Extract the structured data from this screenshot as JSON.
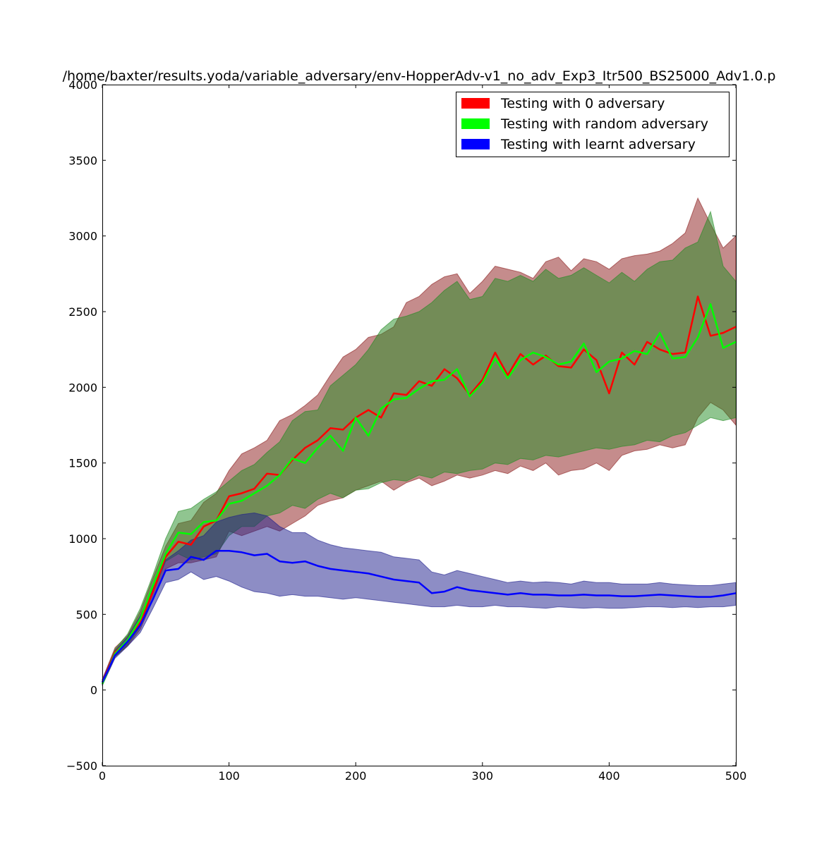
{
  "chart_data": {
    "type": "line",
    "title": "/home/baxter/results.yoda/variable_adversary/env-HopperAdv-v1_no_adv_Exp3_Itr500_BS25000_Adv1.0.p",
    "xlabel": "",
    "ylabel": "",
    "xlim": [
      0,
      500
    ],
    "ylim": [
      -500,
      4000
    ],
    "xticks": [
      0,
      100,
      200,
      300,
      400,
      500
    ],
    "yticks": [
      -500,
      0,
      500,
      1000,
      1500,
      2000,
      2500,
      3000,
      3500,
      4000
    ],
    "grid": false,
    "legend_position": "top-right",
    "series": [
      {
        "name": "Testing with 0 adversary",
        "color": "#ff0000",
        "band_color": "#8b1a1a",
        "x": [
          0,
          10,
          20,
          30,
          40,
          50,
          60,
          70,
          80,
          90,
          100,
          110,
          120,
          130,
          140,
          150,
          160,
          170,
          180,
          190,
          200,
          210,
          220,
          230,
          240,
          250,
          260,
          270,
          280,
          290,
          300,
          310,
          320,
          330,
          340,
          350,
          360,
          370,
          380,
          390,
          400,
          410,
          420,
          430,
          440,
          450,
          460,
          470,
          480,
          490,
          500
        ],
        "mean": [
          50,
          250,
          320,
          450,
          650,
          880,
          980,
          960,
          1080,
          1120,
          1280,
          1300,
          1330,
          1430,
          1420,
          1520,
          1600,
          1650,
          1730,
          1720,
          1800,
          1850,
          1800,
          1960,
          1950,
          2040,
          2010,
          2120,
          2060,
          1950,
          2050,
          2230,
          2080,
          2220,
          2150,
          2210,
          2140,
          2130,
          2250,
          2180,
          1960,
          2230,
          2150,
          2300,
          2250,
          2220,
          2230,
          2600,
          2340,
          2360,
          2400
        ],
        "lower": [
          30,
          220,
          290,
          400,
          600,
          800,
          840,
          840,
          860,
          880,
          1050,
          1020,
          1050,
          1080,
          1050,
          1100,
          1150,
          1220,
          1250,
          1270,
          1320,
          1350,
          1380,
          1320,
          1370,
          1400,
          1350,
          1380,
          1420,
          1400,
          1420,
          1450,
          1430,
          1480,
          1450,
          1500,
          1420,
          1450,
          1460,
          1500,
          1450,
          1550,
          1580,
          1590,
          1620,
          1600,
          1620,
          1800,
          1900,
          1850,
          1750
        ],
        "upper": [
          70,
          280,
          360,
          520,
          740,
          950,
          1100,
          1120,
          1240,
          1300,
          1450,
          1560,
          1600,
          1650,
          1780,
          1820,
          1880,
          1950,
          2080,
          2200,
          2250,
          2330,
          2350,
          2400,
          2560,
          2600,
          2680,
          2730,
          2750,
          2620,
          2700,
          2800,
          2780,
          2760,
          2720,
          2830,
          2860,
          2770,
          2850,
          2830,
          2780,
          2850,
          2870,
          2880,
          2900,
          2950,
          3020,
          3250,
          3080,
          2920,
          3000
        ]
      },
      {
        "name": "Testing with random adversary",
        "color": "#00ff00",
        "band_color": "#228b22",
        "x": [
          0,
          10,
          20,
          30,
          40,
          50,
          60,
          70,
          80,
          90,
          100,
          110,
          120,
          130,
          140,
          150,
          160,
          170,
          180,
          190,
          200,
          210,
          220,
          230,
          240,
          250,
          260,
          270,
          280,
          290,
          300,
          310,
          320,
          330,
          340,
          350,
          360,
          370,
          380,
          390,
          400,
          410,
          420,
          430,
          440,
          450,
          460,
          470,
          480,
          490,
          500
        ],
        "mean": [
          40,
          240,
          330,
          470,
          690,
          900,
          1040,
          1030,
          1110,
          1120,
          1230,
          1250,
          1300,
          1350,
          1420,
          1530,
          1500,
          1600,
          1680,
          1580,
          1800,
          1680,
          1860,
          1920,
          1930,
          1990,
          2040,
          2050,
          2120,
          1940,
          2030,
          2190,
          2060,
          2180,
          2230,
          2200,
          2150,
          2170,
          2290,
          2100,
          2170,
          2190,
          2240,
          2220,
          2360,
          2190,
          2200,
          2330,
          2550,
          2260,
          2300
        ],
        "lower": [
          30,
          220,
          300,
          420,
          640,
          850,
          900,
          860,
          880,
          900,
          1020,
          1080,
          1080,
          1150,
          1170,
          1220,
          1200,
          1260,
          1300,
          1270,
          1320,
          1330,
          1370,
          1390,
          1380,
          1420,
          1400,
          1440,
          1430,
          1450,
          1460,
          1500,
          1490,
          1530,
          1520,
          1550,
          1540,
          1560,
          1580,
          1600,
          1590,
          1610,
          1620,
          1650,
          1640,
          1680,
          1700,
          1750,
          1800,
          1780,
          1800
        ],
        "upper": [
          60,
          270,
          370,
          540,
          760,
          1000,
          1180,
          1200,
          1260,
          1310,
          1380,
          1450,
          1490,
          1570,
          1640,
          1780,
          1840,
          1850,
          2010,
          2080,
          2150,
          2250,
          2380,
          2450,
          2470,
          2500,
          2560,
          2640,
          2700,
          2580,
          2600,
          2720,
          2700,
          2740,
          2700,
          2780,
          2720,
          2740,
          2790,
          2740,
          2690,
          2760,
          2700,
          2780,
          2830,
          2840,
          2920,
          2960,
          3160,
          2800,
          2700
        ]
      },
      {
        "name": "Testing with learnt adversary",
        "color": "#0000ff",
        "band_color": "#1c1c8c",
        "x": [
          0,
          10,
          20,
          30,
          40,
          50,
          60,
          70,
          80,
          90,
          100,
          110,
          120,
          130,
          140,
          150,
          160,
          170,
          180,
          190,
          200,
          210,
          220,
          230,
          240,
          250,
          260,
          270,
          280,
          290,
          300,
          310,
          320,
          330,
          340,
          350,
          360,
          370,
          380,
          390,
          400,
          410,
          420,
          430,
          440,
          450,
          460,
          470,
          480,
          490,
          500
        ],
        "mean": [
          50,
          230,
          320,
          430,
          600,
          790,
          800,
          880,
          860,
          920,
          920,
          910,
          890,
          900,
          850,
          840,
          850,
          820,
          800,
          790,
          780,
          770,
          750,
          730,
          720,
          710,
          640,
          650,
          680,
          660,
          650,
          640,
          630,
          640,
          630,
          630,
          625,
          625,
          630,
          625,
          625,
          620,
          620,
          625,
          630,
          625,
          620,
          615,
          615,
          625,
          640
        ],
        "lower": [
          30,
          210,
          290,
          380,
          540,
          710,
          730,
          780,
          730,
          750,
          720,
          680,
          650,
          640,
          620,
          630,
          620,
          620,
          610,
          600,
          610,
          600,
          590,
          580,
          570,
          560,
          550,
          550,
          560,
          550,
          550,
          560,
          550,
          550,
          545,
          540,
          550,
          545,
          540,
          545,
          540,
          540,
          545,
          550,
          550,
          545,
          550,
          545,
          550,
          550,
          560
        ],
        "upper": [
          70,
          260,
          350,
          490,
          670,
          860,
          920,
          990,
          1020,
          1110,
          1140,
          1160,
          1170,
          1150,
          1080,
          1040,
          1040,
          990,
          960,
          940,
          930,
          920,
          910,
          880,
          870,
          860,
          780,
          760,
          790,
          770,
          750,
          730,
          710,
          720,
          710,
          715,
          710,
          700,
          720,
          710,
          710,
          700,
          700,
          700,
          710,
          700,
          695,
          690,
          690,
          700,
          710
        ]
      }
    ]
  }
}
